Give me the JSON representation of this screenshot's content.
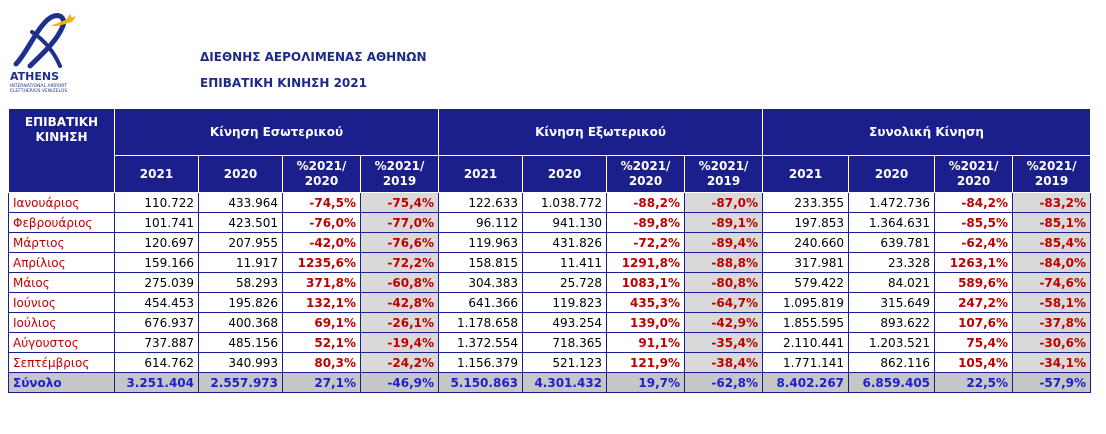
{
  "header": {
    "logo": {
      "word": "ATHENS",
      "sub1": "INTERNATIONAL AIRPORT",
      "sub2": "ELEFTHERIOS VENIZELOS"
    },
    "title": "ΔΙΕΘΝΗΣ ΑΕΡΟΛΙΜΕΝΑΣ ΑΘΗΝΩΝ",
    "subtitle": "ΕΠΙΒΑΤΙΚΗ ΚΙΝΗΣΗ 2021"
  },
  "table": {
    "corner_label_1": "ΕΠΙΒΑΤΙΚΗ",
    "corner_label_2": "ΚΙΝΗΣΗ",
    "groups": [
      "Κίνηση Εσωτερικού",
      "Κίνηση Εξωτερικού",
      "Συνολική Κίνηση"
    ],
    "subheaders": [
      [
        "2021"
      ],
      [
        "2020"
      ],
      [
        "%2021/",
        "2020"
      ],
      [
        "%2021/",
        "2019"
      ],
      [
        "2021"
      ],
      [
        "2020"
      ],
      [
        "%2021/",
        "2020"
      ],
      [
        "%2021/",
        "2019"
      ],
      [
        "2021"
      ],
      [
        "2020"
      ],
      [
        "%2021/",
        "2020"
      ],
      [
        "%2021/",
        "2019"
      ]
    ],
    "rows": [
      [
        "Ιανουάριος",
        "110.722",
        "433.964",
        "-74,5%",
        "-75,4%",
        "122.633",
        "1.038.772",
        "-88,2%",
        "-87,0%",
        "233.355",
        "1.472.736",
        "-84,2%",
        "-83,2%"
      ],
      [
        "Φεβρουάριος",
        "101.741",
        "423.501",
        "-76,0%",
        "-77,0%",
        "96.112",
        "941.130",
        "-89,8%",
        "-89,1%",
        "197.853",
        "1.364.631",
        "-85,5%",
        "-85,1%"
      ],
      [
        "Μάρτιος",
        "120.697",
        "207.955",
        "-42,0%",
        "-76,6%",
        "119.963",
        "431.826",
        "-72,2%",
        "-89,4%",
        "240.660",
        "639.781",
        "-62,4%",
        "-85,4%"
      ],
      [
        "Απρίλιος",
        "159.166",
        "11.917",
        "1235,6%",
        "-72,2%",
        "158.815",
        "11.411",
        "1291,8%",
        "-88,8%",
        "317.981",
        "23.328",
        "1263,1%",
        "-84,0%"
      ],
      [
        "Μάιος",
        "275.039",
        "58.293",
        "371,8%",
        "-60,8%",
        "304.383",
        "25.728",
        "1083,1%",
        "-80,8%",
        "579.422",
        "84.021",
        "589,6%",
        "-74,6%"
      ],
      [
        "Ιούνιος",
        "454.453",
        "195.826",
        "132,1%",
        "-42,8%",
        "641.366",
        "119.823",
        "435,3%",
        "-64,7%",
        "1.095.819",
        "315.649",
        "247,2%",
        "-58,1%"
      ],
      [
        "Ιούλιος",
        "676.937",
        "400.368",
        "69,1%",
        "-26,1%",
        "1.178.658",
        "493.254",
        "139,0%",
        "-42,9%",
        "1.855.595",
        "893.622",
        "107,6%",
        "-37,8%"
      ],
      [
        "Αύγουστος",
        "737.887",
        "485.156",
        "52,1%",
        "-19,4%",
        "1.372.554",
        "718.365",
        "91,1%",
        "-35,4%",
        "2.110.441",
        "1.203.521",
        "75,4%",
        "-30,6%"
      ],
      [
        "Σεπτέμβριος",
        "614.762",
        "340.993",
        "80,3%",
        "-24,2%",
        "1.156.379",
        "521.123",
        "121,9%",
        "-38,4%",
        "1.771.141",
        "862.116",
        "105,4%",
        "-34,1%"
      ]
    ],
    "total": [
      "Σύνολο",
      "3.251.404",
      "2.557.973",
      "27,1%",
      "-46,9%",
      "5.150.863",
      "4.301.432",
      "19,7%",
      "-62,8%",
      "8.402.267",
      "6.859.405",
      "22,5%",
      "-57,9%"
    ]
  }
}
